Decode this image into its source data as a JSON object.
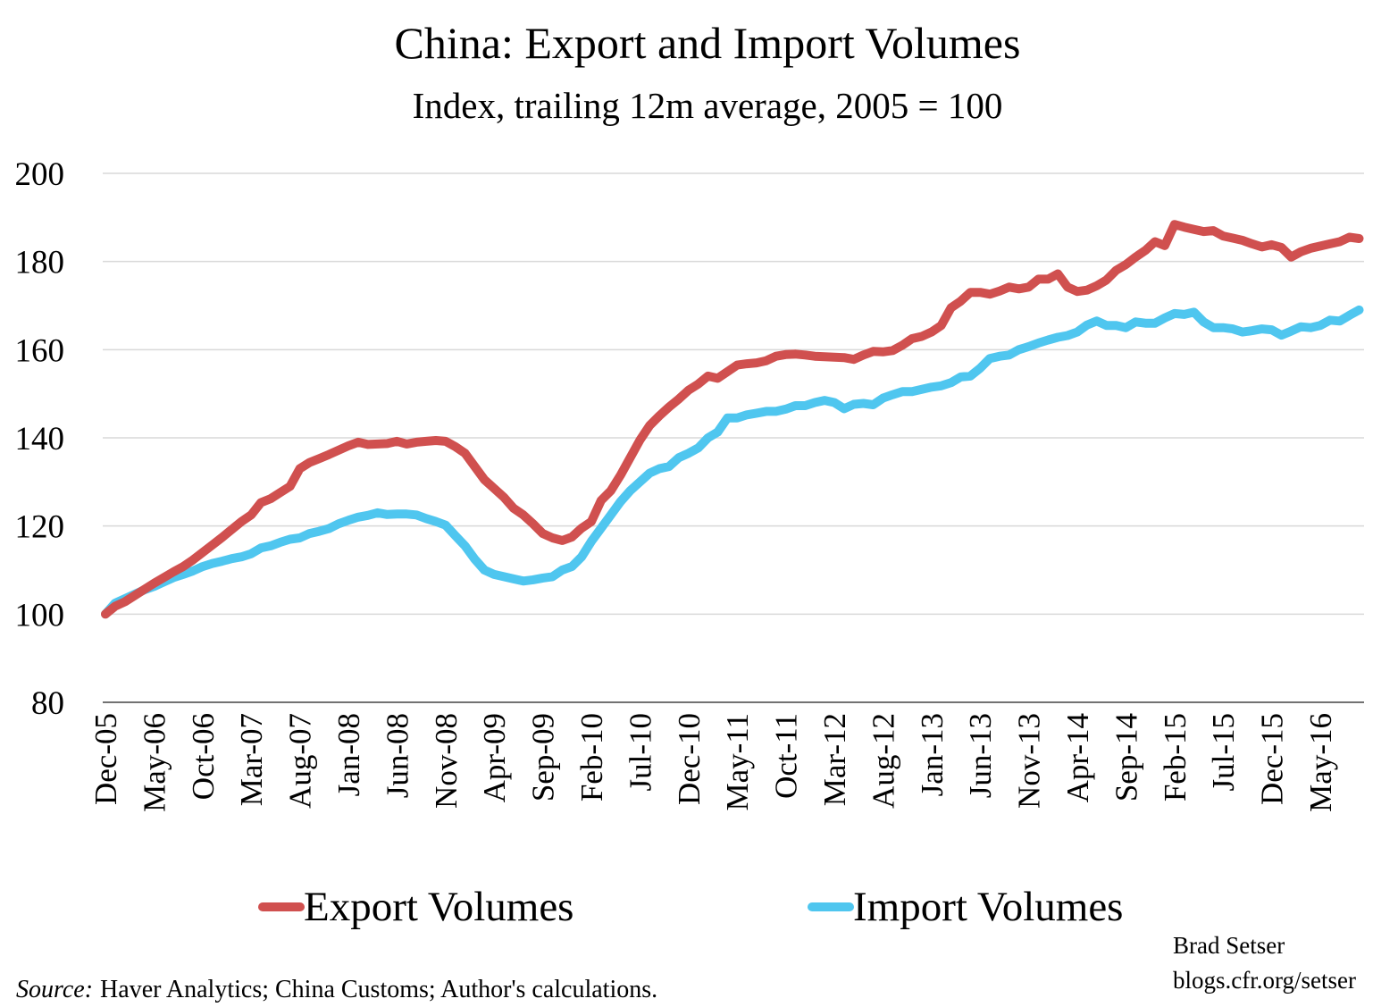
{
  "chart_data": {
    "type": "line",
    "title": "China: Export and Import Volumes",
    "subtitle": "Index, trailing 12m average, 2005 = 100",
    "categories": [
      "Dec-05",
      null,
      null,
      null,
      null,
      "May-06",
      null,
      null,
      null,
      null,
      "Oct-06",
      null,
      null,
      null,
      null,
      "Mar-07",
      null,
      null,
      null,
      null,
      "Aug-07",
      null,
      null,
      null,
      null,
      "Jan-08",
      null,
      null,
      null,
      null,
      "Jun-08",
      null,
      null,
      null,
      null,
      "Nov-08",
      null,
      null,
      null,
      null,
      "Apr-09",
      null,
      null,
      null,
      null,
      "Sep-09",
      null,
      null,
      null,
      null,
      "Feb-10",
      null,
      null,
      null,
      null,
      "Jul-10",
      null,
      null,
      null,
      null,
      "Dec-10",
      null,
      null,
      null,
      null,
      "May-11",
      null,
      null,
      null,
      null,
      "Oct-11",
      null,
      null,
      null,
      null,
      "Mar-12",
      null,
      null,
      null,
      null,
      "Aug-12",
      null,
      null,
      null,
      null,
      "Jan-13",
      null,
      null,
      null,
      null,
      "Jun-13",
      null,
      null,
      null,
      null,
      "Nov-13",
      null,
      null,
      null,
      null,
      "Apr-14",
      null,
      null,
      null,
      null,
      "Sep-14",
      null,
      null,
      null,
      null,
      "Feb-15",
      null,
      null,
      null,
      null,
      "Jul-15",
      null,
      null,
      null,
      null,
      "Dec-15",
      null,
      null,
      null,
      null,
      "May-16",
      null,
      null,
      null,
      null
    ],
    "series": [
      {
        "name": "Export Volumes",
        "color": "#d0504f",
        "values": [
          100,
          101.8,
          102.8,
          104.2,
          105.6,
          107,
          108.3,
          109.6,
          110.8,
          112.3,
          114,
          115.7,
          117.4,
          119.2,
          121,
          122.5,
          125.3,
          126.2,
          127.6,
          129,
          133,
          134.4,
          135.3,
          136.2,
          137.2,
          138.2,
          139,
          138.5,
          138.6,
          138.7,
          139.2,
          138.6,
          139,
          139.2,
          139.4,
          139.2,
          138,
          136.5,
          133.5,
          130.5,
          128.5,
          126.5,
          124,
          122.5,
          120.5,
          118.3,
          117.3,
          116.7,
          117.5,
          119.5,
          121,
          125.8,
          128,
          131.5,
          135.5,
          139.5,
          142.8,
          145,
          147,
          148.8,
          150.8,
          152.2,
          154,
          153.5,
          155,
          156.5,
          156.8,
          157,
          157.5,
          158.5,
          158.9,
          159,
          158.8,
          158.5,
          158.4,
          158.3,
          158.2,
          157.8,
          158.8,
          159.6,
          159.5,
          159.8,
          161,
          162.5,
          163,
          164,
          165.5,
          169.5,
          171,
          173,
          173,
          172.6,
          173.3,
          174.2,
          173.8,
          174.2,
          176,
          176,
          177.2,
          174.2,
          173.2,
          173.5,
          174.5,
          175.8,
          178,
          179.3,
          181,
          182.5,
          184.5,
          183.6,
          188.4,
          187.8,
          187.3,
          186.8,
          187,
          185.8,
          185.3,
          184.8,
          184,
          183.3,
          183.8,
          183.2,
          181,
          182.2,
          183,
          183.5,
          184,
          184.5,
          185.5,
          185.2
        ]
      },
      {
        "name": "Import Volumes",
        "color": "#4fc6ef",
        "values": [
          100,
          102.5,
          103.5,
          104.5,
          105.5,
          106.3,
          107.3,
          108.3,
          109,
          109.8,
          110.8,
          111.5,
          112,
          112.6,
          113,
          113.7,
          115,
          115.5,
          116.3,
          117,
          117.3,
          118.3,
          118.8,
          119.4,
          120.5,
          121.3,
          122,
          122.4,
          123,
          122.6,
          122.7,
          122.7,
          122.5,
          121.7,
          121,
          120.2,
          117.8,
          115.5,
          112.5,
          110,
          109,
          108.5,
          108,
          107.5,
          107.8,
          108.2,
          108.5,
          110,
          110.8,
          113,
          116.5,
          119.5,
          122.5,
          125.5,
          128,
          130,
          132,
          133,
          133.5,
          135.5,
          136.5,
          137.7,
          140,
          141.3,
          144.5,
          144.5,
          145.2,
          145.6,
          146,
          146,
          146.5,
          147.3,
          147.3,
          148,
          148.5,
          148,
          146.6,
          147.6,
          147.8,
          147.5,
          149,
          149.8,
          150.5,
          150.5,
          151,
          151.5,
          151.8,
          152.5,
          153.8,
          154,
          155.8,
          158,
          158.5,
          158.8,
          160,
          160.7,
          161.5,
          162.2,
          162.8,
          163.2,
          164,
          165.6,
          166.5,
          165.5,
          165.5,
          165,
          166.3,
          166,
          166,
          167.2,
          168.2,
          168,
          168.5,
          166.3,
          165,
          165,
          164.7,
          164,
          164.3,
          164.7,
          164.5,
          163.3,
          164.2,
          165.2,
          165,
          165.5,
          166.7,
          166.5,
          167.8,
          169
        ]
      }
    ],
    "ylim": [
      80,
      200
    ],
    "yticks": [
      80,
      100,
      120,
      140,
      160,
      180,
      200
    ],
    "grid": true,
    "source_label": "Source:",
    "source": "Haver Analytics; China Customs; Author's calculations.",
    "author": "Brad Setser",
    "url": "blogs.cfr.org/setser"
  }
}
